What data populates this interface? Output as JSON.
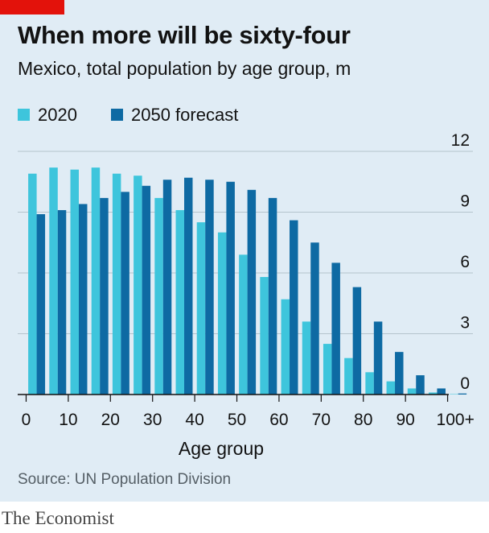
{
  "header": {
    "title": "When more will be sixty-four",
    "subtitle": "Mexico, total population by age group, m"
  },
  "legend": [
    {
      "label": "2020",
      "color": "#3ec5dc"
    },
    {
      "label": "2050 forecast",
      "color": "#0e6aa3"
    }
  ],
  "footer": {
    "source": "Source: UN Population Division",
    "brand": "The Economist"
  },
  "colors": {
    "accent": "#e3120b",
    "background": "#e0ecf5",
    "series_2020": "#3ec5dc",
    "series_2050": "#0e6aa3"
  },
  "chart_data": {
    "type": "bar",
    "xlabel": "Age group",
    "ylabel": "",
    "ylim": [
      0,
      12
    ],
    "yticks": [
      0,
      3,
      6,
      9,
      12
    ],
    "xlim": [
      -2,
      106
    ],
    "xticks": [
      0,
      10,
      20,
      30,
      40,
      50,
      60,
      70,
      80,
      90,
      100
    ],
    "xtick_labels": [
      "0",
      "10",
      "20",
      "30",
      "40",
      "50",
      "60",
      "70",
      "80",
      "90",
      "100+"
    ],
    "grid": true,
    "legend_position": "top-left",
    "categories": [
      0,
      5,
      10,
      15,
      20,
      25,
      30,
      35,
      40,
      45,
      50,
      55,
      60,
      65,
      70,
      75,
      80,
      85,
      90,
      95,
      100
    ],
    "series": [
      {
        "name": "2020",
        "values": [
          10.9,
          11.2,
          11.1,
          11.2,
          10.9,
          10.8,
          9.7,
          9.1,
          8.5,
          8.0,
          6.9,
          5.8,
          4.7,
          3.6,
          2.5,
          1.8,
          1.1,
          0.65,
          0.3,
          0.1,
          0.02
        ]
      },
      {
        "name": "2050 forecast",
        "values": [
          8.9,
          9.1,
          9.4,
          9.7,
          10.0,
          10.3,
          10.6,
          10.7,
          10.6,
          10.5,
          10.1,
          9.7,
          8.6,
          7.5,
          6.5,
          5.3,
          3.6,
          2.1,
          0.95,
          0.3,
          0.05
        ]
      }
    ]
  }
}
